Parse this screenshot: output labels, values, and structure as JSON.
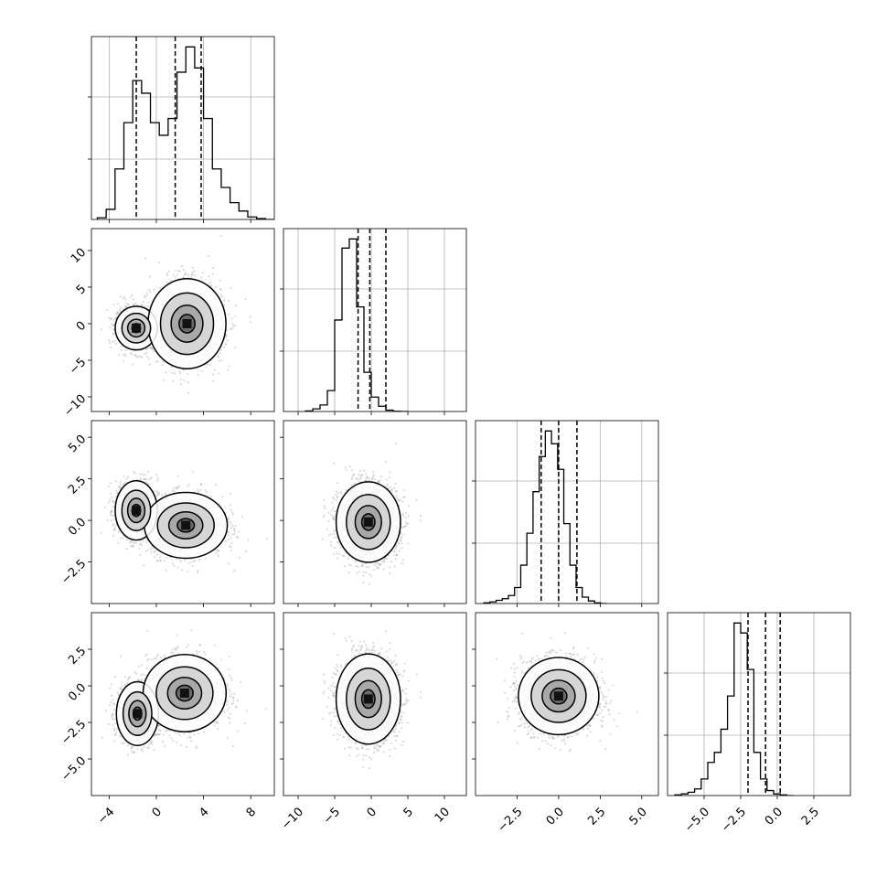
{
  "chart_data": {
    "type": "corner",
    "parameters": [
      {
        "index": 0,
        "range": [
          -5.5,
          10.0
        ],
        "ticks": [
          -4,
          0,
          4,
          8
        ],
        "tick_labels": [
          "−4",
          "0",
          "4",
          "8"
        ],
        "quantiles": [
          -1.7,
          1.6,
          3.8
        ],
        "hist_edges_start": -5.0,
        "hist_bin_width": 0.75,
        "hist_counts": [
          2,
          12,
          60,
          115,
          165,
          150,
          115,
          100,
          120,
          175,
          205,
          180,
          120,
          60,
          38,
          20,
          10,
          3,
          1,
          0
        ]
      },
      {
        "index": 1,
        "range": [
          -12.0,
          13.0
        ],
        "ticks": [
          -10,
          -5,
          0,
          5,
          10
        ],
        "tick_labels": [
          "−10",
          "−5",
          "0",
          "5",
          "10"
        ],
        "quantiles": [
          -1.8,
          -0.2,
          2.0
        ],
        "hist_edges_start": -9.0,
        "hist_bin_width": 1.0,
        "hist_counts": [
          2,
          10,
          25,
          80,
          350,
          625,
          660,
          400,
          150,
          55,
          20,
          5,
          1,
          0
        ]
      },
      {
        "index": 2,
        "range": [
          -5.0,
          6.0
        ],
        "ticks": [
          -2.5,
          0.0,
          2.5,
          5.0
        ],
        "tick_labels": [
          "−2.5",
          "0.0",
          "2.5",
          "5.0"
        ],
        "quantiles": [
          -1.05,
          0.0,
          1.1
        ],
        "hist_edges_start": -4.5,
        "hist_bin_width": 0.37,
        "hist_counts": [
          2,
          5,
          10,
          15,
          25,
          50,
          120,
          220,
          350,
          460,
          540,
          500,
          420,
          250,
          120,
          50,
          20,
          8,
          2,
          0
        ]
      },
      {
        "index": 3,
        "range": [
          -7.5,
          5.0
        ],
        "ticks": [
          -5.0,
          -2.5,
          0.0,
          2.5
        ],
        "tick_labels": [
          "−5.0",
          "−2.5",
          "0.0",
          "2.5"
        ],
        "quantiles": [
          -2.0,
          -0.8,
          0.2
        ],
        "hist_edges_start": -7.0,
        "hist_bin_width": 0.45,
        "hist_counts": [
          2,
          5,
          10,
          20,
          50,
          100,
          130,
          200,
          300,
          520,
          490,
          380,
          130,
          50,
          15,
          5,
          2,
          0
        ]
      }
    ],
    "hist_ylabel_ticks": 2,
    "y_tick_rows": [
      {
        "row": 1,
        "ticks": [
          -10,
          -5,
          0,
          5,
          10
        ],
        "tick_labels": [
          "−10",
          "−5",
          "0",
          "5",
          "10"
        ]
      },
      {
        "row": 2,
        "ticks": [
          -2.5,
          0.0,
          2.5,
          5.0
        ],
        "tick_labels": [
          "−2.5",
          "0.0",
          "2.5",
          "5.0"
        ]
      },
      {
        "row": 3,
        "ticks": [
          -5.0,
          -2.5,
          0.0,
          2.5
        ],
        "tick_labels": [
          "−5.0",
          "−2.5",
          "0.0",
          "2.5"
        ]
      }
    ],
    "pair_density": [
      {
        "row": 1,
        "col": 0,
        "clusters": [
          [
            -1.7,
            -0.6,
            0.9,
            1.5,
            0.35
          ],
          [
            2.6,
            0.0,
            1.5,
            2.8,
            0.65
          ]
        ]
      },
      {
        "row": 2,
        "col": 0,
        "clusters": [
          [
            -1.7,
            0.6,
            0.9,
            0.9,
            0.35
          ],
          [
            2.5,
            -0.3,
            1.6,
            0.9,
            0.65
          ]
        ]
      },
      {
        "row": 2,
        "col": 1,
        "clusters": [
          [
            -0.4,
            -0.1,
            2.0,
            1.1,
            1.0
          ]
        ]
      },
      {
        "row": 3,
        "col": 0,
        "clusters": [
          [
            -1.6,
            -1.9,
            0.9,
            1.1,
            0.35
          ],
          [
            2.4,
            -0.5,
            1.6,
            1.2,
            0.65
          ]
        ]
      },
      {
        "row": 3,
        "col": 1,
        "clusters": [
          [
            -0.4,
            -0.9,
            2.0,
            1.4,
            1.0
          ]
        ]
      },
      {
        "row": 3,
        "col": 2,
        "clusters": [
          [
            0.0,
            -0.7,
            1.1,
            1.2,
            1.0
          ]
        ]
      }
    ],
    "grid": true,
    "colors": {
      "line": "#000000",
      "scatter": "#999999",
      "grid": "#b0b0b0"
    }
  }
}
